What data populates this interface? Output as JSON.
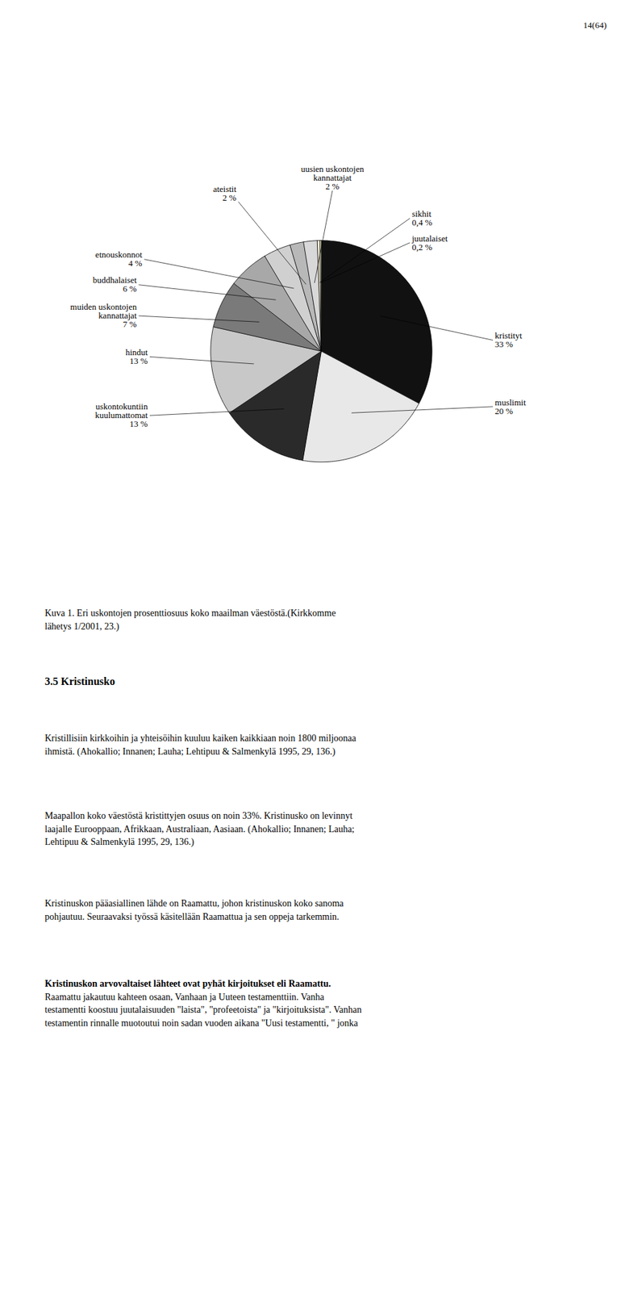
{
  "chart_data": {
    "type": "pie",
    "title": "Kuva 1.  Eri uskontojen prosenttiosuus koko maailman väestöstä.(Kirkkomme\nlähetys 1/2001, 23.)",
    "categories": [
      "kristityt",
      "muslimit",
      "uskontokuntiin\nkuulumattomat",
      "hindut",
      "muiden uskontojen\nkannattajat",
      "buddhalaiset",
      "etnouskonnot",
      "ateistit",
      "uusien uskontojen\nkannattajat",
      "sikhit",
      "juutalaiset"
    ],
    "values": [
      33,
      20,
      13,
      13,
      7,
      6,
      4,
      2,
      2,
      0.4,
      0.2
    ],
    "value_labels": [
      "33 %",
      "20 %",
      "13 %",
      "13 %",
      "7 %",
      "6 %",
      "4 %",
      "2 %",
      "2 %",
      "0,4 %",
      "0,2 %"
    ],
    "colors": [
      "#111111",
      "#e8e8e8",
      "#2a2a2a",
      "#c8c8c8",
      "#7a7a7a",
      "#a8a8a8",
      "#d0d0d0",
      "#b8b8b8",
      "#d8d8d8",
      "#f0ead0",
      "#e8e8c8"
    ],
    "data_labels": true,
    "tick_labels": false,
    "annotations": [
      "14(64)",
      "3.5  Kristinusko",
      "Kristillisiin kirkkoihin ja yhteisöihin kuuluu kaiken kaikkiaan noin 1800 miljoonaa\nihmistä. (Ahokallio; Innanen; Lauha; Lehtipuu & Salmenkylä 1995, 29, 136.)",
      "Maapallon koko väestöstä kristittyjen osuus on noin 33%. Kristinusko on levinnyt\nlaajalle Eurooppaan, Afrikkaan, Australiaan, Aasiaan. (Ahokallio; Innanen; Lauha;\nLehtipuu & Salmenkylä 1995, 29, 136.)",
      "Kristinuskon pääasiallinen lähde on Raamattu, johon kristinuskon koko sanoma\npohjautuu. Seuraavaksi työssä käsitellään Raamattua ja sen oppeja tarkemmin.",
      "Kristinuskon arvovaltaiset lähteet ovat pyhät kirjoitukset eli Raamattu.\nRaamattu jakautuu kahteen osaan, Vanhaan ja Uuteen testamenttiin. Vanha\ntestamentti koostuu juutalaisuuden \"laista\", \"profeetoista\" ja \"kirjoituksista\". Vanhan\ntestamentin rinnalle muotoutui noin sadan vuoden aikana \"Uusi testamentti, \" jonka"
    ]
  }
}
